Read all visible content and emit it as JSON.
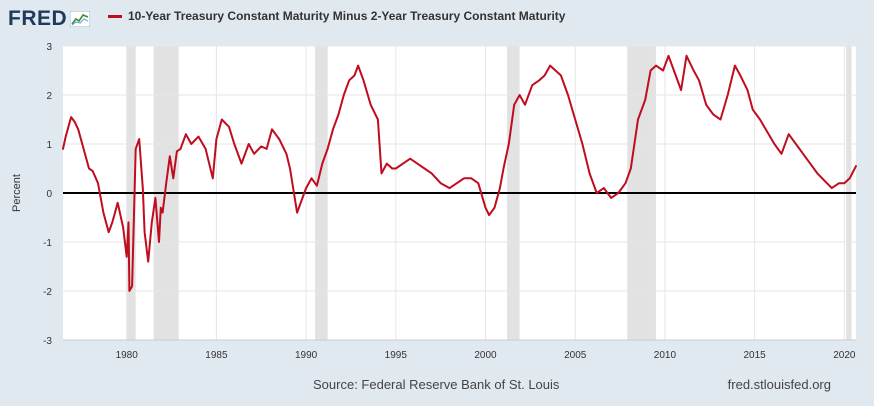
{
  "header": {
    "logo_text": "FRED",
    "logo_icon": "fred-chart-icon",
    "legend_label": "10-Year Treasury Constant Maturity Minus 2-Year Treasury Constant Maturity",
    "series_color": "#c00c1f"
  },
  "footer": {
    "source": "Source: Federal Reserve Bank of St. Louis",
    "site": "fred.stlouisfed.org"
  },
  "chart_data": {
    "type": "line",
    "title": "",
    "xlabel": "",
    "ylabel": "Percent",
    "xlim": [
      1976.45,
      2020.65
    ],
    "ylim": [
      -3,
      3
    ],
    "yticks": [
      -3,
      -2,
      -1,
      0,
      1,
      2,
      3
    ],
    "xticks": [
      1980,
      1985,
      1990,
      1995,
      2000,
      2005,
      2010,
      2015,
      2020
    ],
    "grid": true,
    "zero_line": true,
    "recessions": [
      [
        1980.0,
        1980.5
      ],
      [
        1981.5,
        1982.9
      ],
      [
        1990.5,
        1991.2
      ],
      [
        2001.2,
        2001.9
      ],
      [
        2007.9,
        2009.5
      ],
      [
        2020.1,
        2020.4
      ]
    ],
    "series": [
      {
        "name": "10-Year Treasury Constant Maturity Minus 2-Year Treasury Constant Maturity",
        "x": [
          1976.45,
          1976.6,
          1976.9,
          1977.1,
          1977.3,
          1977.6,
          1977.9,
          1978.1,
          1978.4,
          1978.7,
          1979.0,
          1979.2,
          1979.5,
          1979.8,
          1980.0,
          1980.1,
          1980.15,
          1980.3,
          1980.5,
          1980.7,
          1980.9,
          1981.0,
          1981.2,
          1981.4,
          1981.6,
          1981.8,
          1981.9,
          1982.0,
          1982.2,
          1982.4,
          1982.6,
          1982.8,
          1983.0,
          1983.3,
          1983.6,
          1984.0,
          1984.4,
          1984.8,
          1985.0,
          1985.3,
          1985.7,
          1986.0,
          1986.4,
          1986.8,
          1987.1,
          1987.5,
          1987.8,
          1988.1,
          1988.5,
          1988.9,
          1989.1,
          1989.5,
          1989.8,
          1990.0,
          1990.3,
          1990.6,
          1990.9,
          1991.2,
          1991.5,
          1991.8,
          1992.1,
          1992.4,
          1992.7,
          1992.9,
          1993.2,
          1993.6,
          1994.0,
          1994.2,
          1994.5,
          1994.8,
          1995.0,
          1995.4,
          1995.8,
          1996.2,
          1996.6,
          1997.0,
          1997.5,
          1998.0,
          1998.4,
          1998.8,
          1999.2,
          1999.6,
          2000.0,
          2000.2,
          2000.5,
          2000.8,
          2001.0,
          2001.3,
          2001.6,
          2001.9,
          2002.2,
          2002.6,
          2003.0,
          2003.3,
          2003.6,
          2003.9,
          2004.2,
          2004.6,
          2005.0,
          2005.4,
          2005.8,
          2006.2,
          2006.6,
          2007.0,
          2007.4,
          2007.8,
          2008.1,
          2008.5,
          2008.9,
          2009.2,
          2009.5,
          2009.9,
          2010.2,
          2010.5,
          2010.9,
          2011.2,
          2011.6,
          2011.9,
          2012.3,
          2012.7,
          2013.1,
          2013.5,
          2013.9,
          2014.2,
          2014.6,
          2014.9,
          2015.3,
          2015.7,
          2016.1,
          2016.5,
          2016.9,
          2017.3,
          2017.7,
          2018.1,
          2018.5,
          2018.9,
          2019.3,
          2019.7,
          2020.0,
          2020.3,
          2020.65
        ],
        "values": [
          0.9,
          1.15,
          1.55,
          1.45,
          1.3,
          0.9,
          0.5,
          0.45,
          0.2,
          -0.4,
          -0.8,
          -0.6,
          -0.2,
          -0.7,
          -1.3,
          -0.6,
          -2.0,
          -1.9,
          0.9,
          1.1,
          0.1,
          -0.8,
          -1.4,
          -0.6,
          -0.1,
          -1.0,
          -0.3,
          -0.4,
          0.2,
          0.75,
          0.3,
          0.85,
          0.9,
          1.2,
          1.0,
          1.15,
          0.9,
          0.3,
          1.1,
          1.5,
          1.35,
          1.0,
          0.6,
          1.0,
          0.8,
          0.95,
          0.9,
          1.3,
          1.1,
          0.8,
          0.5,
          -0.4,
          -0.1,
          0.1,
          0.3,
          0.15,
          0.6,
          0.9,
          1.3,
          1.6,
          2.0,
          2.3,
          2.4,
          2.6,
          2.3,
          1.8,
          1.5,
          0.4,
          0.6,
          0.5,
          0.5,
          0.6,
          0.7,
          0.6,
          0.5,
          0.4,
          0.2,
          0.1,
          0.2,
          0.3,
          0.3,
          0.2,
          -0.3,
          -0.45,
          -0.3,
          0.1,
          0.5,
          1.0,
          1.8,
          2.0,
          1.8,
          2.2,
          2.3,
          2.4,
          2.6,
          2.5,
          2.4,
          2.0,
          1.5,
          1.0,
          0.4,
          0.0,
          0.1,
          -0.1,
          0.0,
          0.2,
          0.5,
          1.5,
          1.9,
          2.5,
          2.6,
          2.5,
          2.8,
          2.5,
          2.1,
          2.8,
          2.5,
          2.3,
          1.8,
          1.6,
          1.5,
          2.0,
          2.6,
          2.4,
          2.1,
          1.7,
          1.5,
          1.25,
          1.0,
          0.8,
          1.2,
          1.0,
          0.8,
          0.6,
          0.4,
          0.25,
          0.1,
          0.2,
          0.2,
          0.3,
          0.55
        ]
      }
    ]
  }
}
